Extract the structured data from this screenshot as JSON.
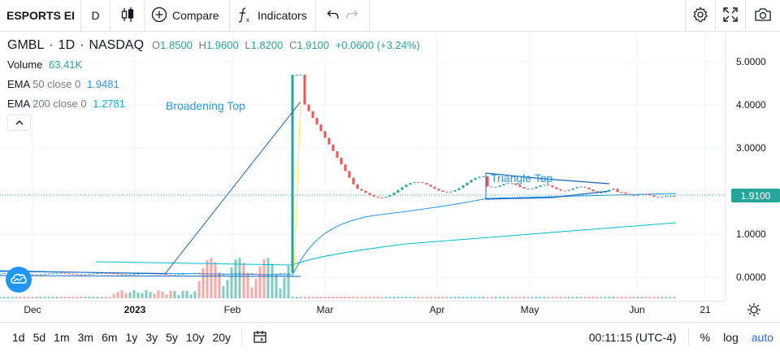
{
  "toolbar": {
    "symbol": "ESPORTS EI",
    "interval": "D",
    "compare_label": "Compare",
    "indicators_label": "Indicators"
  },
  "legend": {
    "symbol": "GMBL",
    "interval": "1D",
    "exchange": "NASDAQ",
    "o_label": "O",
    "o_value": "1.8500",
    "h_label": "H",
    "h_value": "1.9600",
    "l_label": "L",
    "l_value": "1.8200",
    "c_label": "C",
    "c_value": "1.9100",
    "change": "+0.0600 (+3.24%)"
  },
  "indicators": {
    "volume_label": "Volume",
    "volume_value": "63.41K",
    "ema50_label": "EMA",
    "ema50_params": "50 close 0",
    "ema50_value": "1.9481",
    "ema200_label": "EMA",
    "ema200_params": "200 close 0",
    "ema200_value": "1.2781"
  },
  "patterns": {
    "broadening_top": "Broadening Top",
    "triangle_top": "Triangle Top"
  },
  "price_axis": {
    "ticks": [
      "5.0000",
      "4.0000",
      "3.0000",
      "2.0000",
      "1.0000",
      "0.0000"
    ],
    "current_price": "1.9100"
  },
  "time_axis": {
    "ticks": [
      "Dec",
      "2023",
      "Feb",
      "Mar",
      "Apr",
      "May",
      "Jun",
      "21"
    ]
  },
  "bottom_bar": {
    "ranges": [
      "1d",
      "5d",
      "1m",
      "3m",
      "6m",
      "1y",
      "3y",
      "5y",
      "10y",
      "20y"
    ],
    "time": "00:11:15 (UTC-4)",
    "percent_label": "%",
    "log_label": "log",
    "auto_label": "auto"
  },
  "colors": {
    "up": "#26a69a",
    "down": "#ef5350",
    "ema50": "#2196f3",
    "ema200": "#00bcd4",
    "pattern_line": "#1565c0",
    "accent": "#2962ff"
  }
}
